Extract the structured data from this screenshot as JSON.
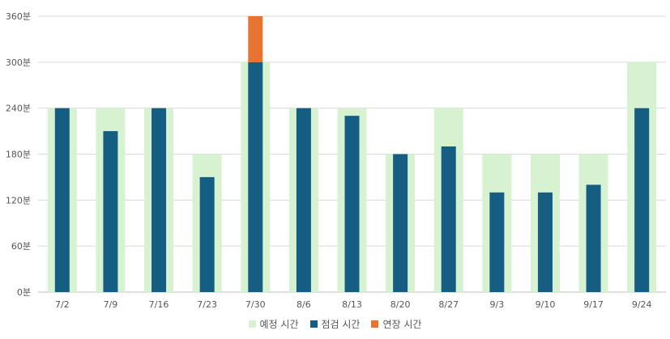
{
  "chart_data": {
    "type": "bar",
    "categories": [
      "7/2",
      "7/9",
      "7/16",
      "7/23",
      "7/30",
      "8/6",
      "8/13",
      "8/20",
      "8/27",
      "9/3",
      "9/10",
      "9/17",
      "9/24"
    ],
    "series": [
      {
        "name": "예정 시간",
        "color": "#d6f2d0",
        "values": [
          240,
          240,
          240,
          180,
          300,
          240,
          240,
          180,
          240,
          180,
          180,
          180,
          300
        ]
      },
      {
        "name": "점검 시간",
        "color": "#155d82",
        "values": [
          240,
          210,
          240,
          150,
          300,
          240,
          230,
          180,
          190,
          130,
          130,
          140,
          240
        ]
      },
      {
        "name": "연장 시간",
        "color": "#e87432",
        "values": [
          0,
          0,
          0,
          0,
          60,
          0,
          0,
          0,
          0,
          0,
          0,
          0,
          0
        ]
      }
    ],
    "y_ticks": [
      "0분",
      "60분",
      "120분",
      "180분",
      "240분",
      "300분",
      "360분"
    ],
    "ylim": [
      0,
      360
    ],
    "grid": true,
    "legend_position": "bottom"
  }
}
